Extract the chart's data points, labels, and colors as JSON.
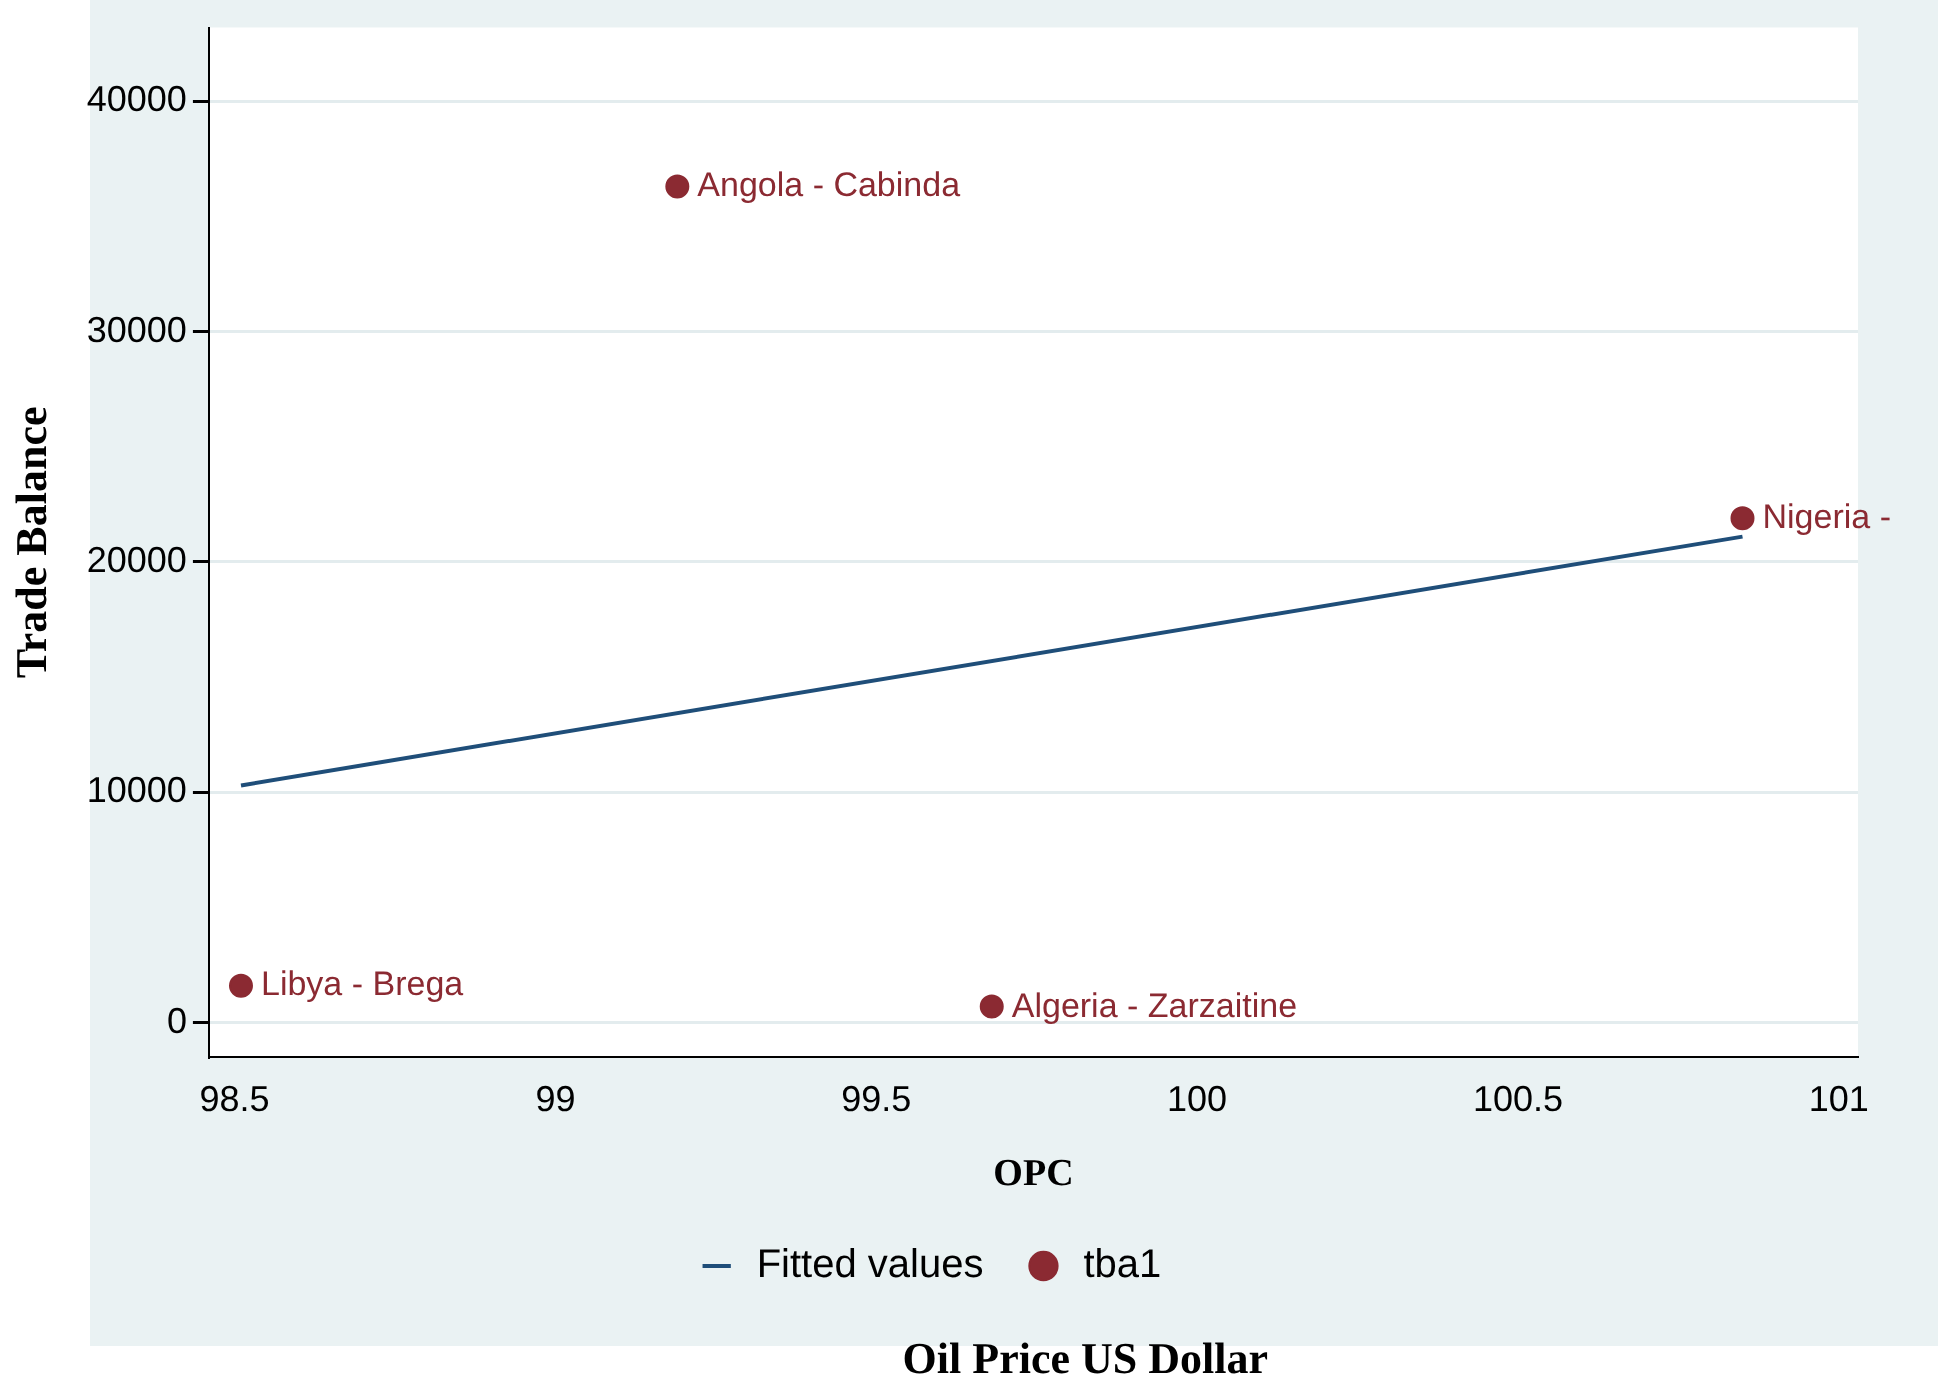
{
  "chart_data": {
    "type": "scatter",
    "xlabel": "OPC",
    "ylabel": "Trade Balance",
    "xlim": [
      98.46,
      101.03
    ],
    "xticks": [
      98.5,
      99,
      99.5,
      100,
      100.5,
      101
    ],
    "ylim": [
      -1500,
      43200
    ],
    "yticks": [
      0,
      10000,
      20000,
      30000,
      40000
    ],
    "grid": "y",
    "legend": "bottom",
    "marker": "circle",
    "series": [
      {
        "name": "Fitted values",
        "type": "line",
        "color": "#1f4e79",
        "x": [
          98.51,
          100.85
        ],
        "values": [
          10300,
          21100
        ],
        "marker": "none"
      },
      {
        "name": "tba1",
        "color": "#8b2a32",
        "x": [
          98.51,
          99.19,
          99.68,
          100.85
        ],
        "values": [
          1600,
          36300,
          700,
          21900
        ]
      }
    ],
    "annotations": [
      {
        "text": "Libya - Brega",
        "x": 98.51,
        "y": 1600
      },
      {
        "text": "Angola - Cabinda",
        "x": 99.19,
        "y": 36300
      },
      {
        "text": "Algeria - Zarzaitine",
        "x": 99.68,
        "y": 650
      },
      {
        "text": "Nigeria -",
        "x": 100.85,
        "y": 21900
      },
      "Oil Price US Dollar"
    ]
  }
}
